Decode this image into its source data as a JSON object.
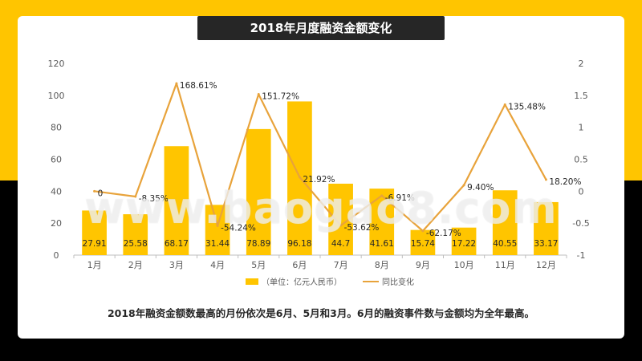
{
  "title": "2018年月度融资金额变化",
  "caption": "2018年融资金额数最高的月份依次是6月、5月和3月。6月的融资事件数与金额均为全年最高。",
  "watermark": "www.baogao8.com",
  "colors": {
    "bar": "#ffc500",
    "line": "#e8a33b",
    "accent": "#ffc500",
    "dark": "#262626"
  },
  "chart_data": {
    "type": "bar",
    "title": "2018年月度融资金额变化",
    "categories": [
      "1月",
      "2月",
      "3月",
      "4月",
      "5月",
      "6月",
      "7月",
      "8月",
      "9月",
      "10月",
      "11月",
      "12月"
    ],
    "series": [
      {
        "name": "（单位：亿元人民币）",
        "type": "bar",
        "axis": "left",
        "values": [
          27.91,
          25.58,
          68.17,
          31.44,
          78.89,
          96.18,
          44.7,
          41.61,
          15.74,
          17.22,
          40.55,
          33.17
        ],
        "labels": [
          "27.91",
          "25.58",
          "68.17",
          "31.44",
          "78.89",
          "96.18",
          "44.7",
          "41.61",
          "15.74",
          "17.22",
          "40.55",
          "33.17"
        ]
      },
      {
        "name": "同比变化",
        "type": "line",
        "axis": "right",
        "values": [
          0,
          -0.0835,
          1.6861,
          -0.5424,
          1.5172,
          0.2192,
          -0.5362,
          -0.0691,
          -0.6217,
          0.094,
          1.3548,
          0.182
        ],
        "labels": [
          "0",
          "-8.35%",
          "168.61%",
          "-54.24%",
          "151.72%",
          "21.92%",
          "-53.62%",
          "-6.91%",
          "-62.17%",
          "9.40%",
          "135.48%",
          "18.20%"
        ]
      }
    ],
    "y_left": {
      "min": 0,
      "max": 120,
      "ticks": [
        "0",
        "20",
        "40",
        "60",
        "80",
        "100",
        "120"
      ]
    },
    "y_right": {
      "min": -1,
      "max": 2,
      "ticks": [
        "-1",
        "-0.5",
        "0",
        "0.5",
        "1",
        "1.5",
        "2"
      ]
    },
    "legend": [
      "（单位：亿元人民币）",
      "同比变化"
    ],
    "legend_position": "bottom",
    "grid": false
  }
}
